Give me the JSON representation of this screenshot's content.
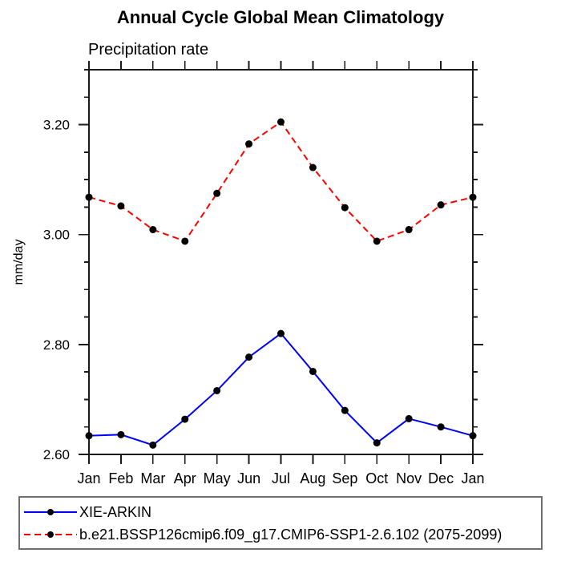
{
  "page": {
    "background": "#ffffff"
  },
  "chart_data": {
    "type": "line",
    "title": "Annual Cycle Global Mean Climatology",
    "subtitle": "Precipitation rate",
    "ylabel": "mm/day",
    "xlabel": "",
    "x_categories": [
      "Jan",
      "Feb",
      "Mar",
      "Apr",
      "May",
      "Jun",
      "Jul",
      "Aug",
      "Sep",
      "Oct",
      "Nov",
      "Dec",
      "Jan"
    ],
    "ylim": [
      2.6,
      3.3
    ],
    "ytick_major": [
      2.6,
      2.8,
      3.0,
      3.2
    ],
    "ytick_major_labels": [
      "2.60",
      "2.80",
      "3.00",
      "3.20"
    ],
    "ytick_minor_step": 0.05,
    "grid": false,
    "legend_position": "bottom-left",
    "axis_color": "#1a1a1a",
    "text_color": "#000000",
    "series": [
      {
        "name": "XIE-ARKIN",
        "color": "#0000ff",
        "line_style": "solid",
        "marker": "filled-circle",
        "marker_color": "#000000",
        "values": [
          2.634,
          2.636,
          2.617,
          2.664,
          2.716,
          2.777,
          2.82,
          2.751,
          2.68,
          2.621,
          2.665,
          2.65,
          2.634
        ]
      },
      {
        "name": "b.e21.BSSP126cmip6.f09_g17.CMIP6-SSP1-2.6.102 (2075-2099)",
        "color": "#ff0000",
        "line_style": "dashed",
        "marker": "filled-circle",
        "marker_color": "#000000",
        "values": [
          3.068,
          3.052,
          3.009,
          2.988,
          3.075,
          3.165,
          3.205,
          3.122,
          3.049,
          2.988,
          3.009,
          3.054,
          3.068
        ]
      }
    ]
  }
}
